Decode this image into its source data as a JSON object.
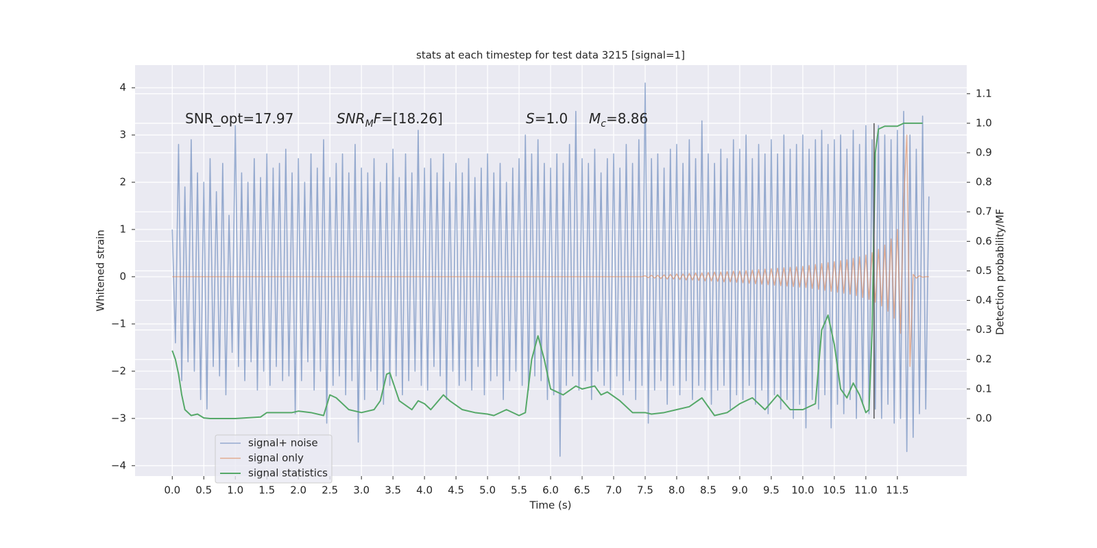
{
  "chart_data": {
    "type": "line",
    "title": "stats at each timestep for test data 3215 [signal=1]",
    "xlabel": "Time (s)",
    "ylabel": "Whitened strain",
    "y2label": "Detection probability/MF",
    "xlim": [
      -0.59,
      12.6
    ],
    "ylim": [
      -4.22,
      4.48
    ],
    "y2lim": [
      -0.195,
      1.197
    ],
    "xticks": [
      {
        "value": 0,
        "label": "0.0"
      },
      0.5,
      {
        "value": 1,
        "label": "1.0"
      },
      1.5,
      {
        "value": 2,
        "label": "2.0"
      },
      2.5,
      {
        "value": 3,
        "label": "3.0"
      },
      3.5,
      {
        "value": 4,
        "label": "4.0"
      },
      4.5,
      {
        "value": 5,
        "label": "5.0"
      },
      5.5,
      {
        "value": 6,
        "label": "6.0"
      },
      6.5,
      {
        "value": 7,
        "label": "7.0"
      },
      7.5,
      {
        "value": 8,
        "label": "8.0"
      },
      8.5,
      {
        "value": 9,
        "label": "9.0"
      },
      9.5,
      {
        "value": 10,
        "label": "10.0"
      },
      10.5,
      {
        "value": 11,
        "label": "11.0"
      },
      11.5
    ],
    "yticks": [
      {
        "value": -4,
        "label": "−4"
      },
      {
        "value": -3,
        "label": "−3"
      },
      {
        "value": -2,
        "label": "−2"
      },
      {
        "value": -1,
        "label": "−1"
      },
      0,
      1,
      2,
      3,
      4
    ],
    "y2ticks": [
      {
        "value": 0,
        "label": "0.0"
      },
      0.1,
      0.2,
      0.3,
      0.4,
      0.5,
      0.6,
      0.7,
      0.8,
      0.9,
      {
        "value": 1,
        "label": "1.0"
      },
      1.1
    ],
    "grid": true,
    "legend": "lower left",
    "annotations": [
      [
        {
          "text": "SNR_opt=17.97",
          "style": "normal"
        }
      ],
      [
        {
          "text": "SNR",
          "style": "italic"
        },
        {
          "text": "M",
          "style": "italic-sub"
        },
        {
          "text": "F",
          "style": "italic"
        },
        {
          "text": "=[18.26]",
          "style": "normal"
        }
      ],
      [
        {
          "text": "S",
          "style": "italic"
        },
        {
          "text": "=1.0",
          "style": "normal"
        }
      ],
      [
        {
          "text": "M",
          "style": "italic"
        },
        {
          "text": "c",
          "style": "italic-sub"
        },
        {
          "text": "=8.86",
          "style": "normal"
        }
      ]
    ],
    "vline": {
      "x": 11.13,
      "ymin": 0,
      "ymax": 1.0,
      "color": "#555555"
    },
    "x": [
      0,
      0.05,
      0.1,
      0.15,
      0.2,
      0.25,
      0.3,
      0.35,
      0.4,
      0.45,
      0.5,
      0.55,
      0.6,
      0.65,
      0.7,
      0.75,
      0.8,
      0.85,
      0.9,
      0.95,
      1.0,
      1.05,
      1.1,
      1.15,
      1.2,
      1.25,
      1.3,
      1.35,
      1.4,
      1.45,
      1.5,
      1.55,
      1.6,
      1.65,
      1.7,
      1.75,
      1.8,
      1.85,
      1.9,
      1.95,
      2.0,
      2.05,
      2.1,
      2.15,
      2.2,
      2.25,
      2.3,
      2.35,
      2.4,
      2.45,
      2.5,
      2.55,
      2.6,
      2.65,
      2.7,
      2.75,
      2.8,
      2.85,
      2.9,
      2.95,
      3.0,
      3.05,
      3.1,
      3.15,
      3.2,
      3.25,
      3.3,
      3.35,
      3.4,
      3.45,
      3.5,
      3.55,
      3.6,
      3.65,
      3.7,
      3.75,
      3.8,
      3.85,
      3.9,
      3.95,
      4.0,
      4.05,
      4.1,
      4.15,
      4.2,
      4.25,
      4.3,
      4.35,
      4.4,
      4.45,
      4.5,
      4.55,
      4.6,
      4.65,
      4.7,
      4.75,
      4.8,
      4.85,
      4.9,
      4.95,
      5.0,
      5.05,
      5.1,
      5.15,
      5.2,
      5.25,
      5.3,
      5.35,
      5.4,
      5.45,
      5.5,
      5.55,
      5.6,
      5.65,
      5.7,
      5.75,
      5.8,
      5.85,
      5.9,
      5.95,
      6.0,
      6.05,
      6.1,
      6.15,
      6.2,
      6.25,
      6.3,
      6.35,
      6.4,
      6.45,
      6.5,
      6.55,
      6.6,
      6.65,
      6.7,
      6.75,
      6.8,
      6.85,
      6.9,
      6.95,
      7.0,
      7.05,
      7.1,
      7.15,
      7.2,
      7.25,
      7.3,
      7.35,
      7.4,
      7.45,
      7.5,
      7.55,
      7.6,
      7.65,
      7.7,
      7.75,
      7.8,
      7.85,
      7.9,
      7.95,
      8.0,
      8.05,
      8.1,
      8.15,
      8.2,
      8.25,
      8.3,
      8.35,
      8.4,
      8.45,
      8.5,
      8.55,
      8.6,
      8.65,
      8.7,
      8.75,
      8.8,
      8.85,
      8.9,
      8.95,
      9.0,
      9.05,
      9.1,
      9.15,
      9.2,
      9.25,
      9.3,
      9.35,
      9.4,
      9.45,
      9.5,
      9.55,
      9.6,
      9.65,
      9.7,
      9.75,
      9.8,
      9.85,
      9.9,
      9.95,
      10.0,
      10.05,
      10.1,
      10.15,
      10.2,
      10.25,
      10.3,
      10.35,
      10.4,
      10.45,
      10.5,
      10.55,
      10.6,
      10.65,
      10.7,
      10.75,
      10.8,
      10.85,
      10.9,
      10.95,
      11.0,
      11.05,
      11.1,
      11.15,
      11.2,
      11.25,
      11.3,
      11.35,
      11.4,
      11.45,
      11.5,
      11.55,
      11.6,
      11.65,
      11.7,
      11.75,
      11.8,
      11.85,
      11.9,
      11.95,
      12.0
    ],
    "series": [
      {
        "name": "signal+ noise",
        "color": "#4c72b0",
        "values": [
          1.0,
          -1.4,
          2.8,
          -2.2,
          1.9,
          -1.8,
          2.9,
          -2.0,
          2.2,
          -2.6,
          2.0,
          -2.8,
          2.5,
          -1.9,
          1.8,
          -2.1,
          2.4,
          -2.5,
          1.3,
          -1.6,
          3.2,
          -1.9,
          2.2,
          -2.2,
          2.0,
          -1.8,
          2.5,
          -2.4,
          2.1,
          -2.0,
          2.6,
          -2.3,
          2.3,
          -1.9,
          2.4,
          -2.2,
          2.7,
          -2.1,
          2.2,
          -2.9,
          2.5,
          -2.2,
          2.0,
          -1.8,
          2.6,
          -2.4,
          2.3,
          -2.0,
          2.9,
          -3.1,
          2.1,
          -2.3,
          2.4,
          -2.1,
          2.6,
          -2.5,
          2.2,
          -2.2,
          2.8,
          -3.5,
          2.3,
          -2.6,
          2.2,
          -2.0,
          2.5,
          -2.4,
          2.0,
          -2.7,
          2.4,
          -2.3,
          2.7,
          -2.1,
          2.1,
          -2.5,
          2.6,
          -2.2,
          2.2,
          -2.0,
          3.1,
          -2.3,
          2.3,
          -2.4,
          2.5,
          -1.9,
          2.2,
          -2.1,
          2.6,
          -2.6,
          2.0,
          -2.0,
          2.4,
          -2.3,
          2.2,
          -2.2,
          2.5,
          -2.4,
          2.1,
          -1.9,
          2.3,
          -2.5,
          2.6,
          -2.2,
          2.2,
          -2.1,
          2.4,
          -2.6,
          2.0,
          -2.2,
          2.3,
          -2.0,
          2.5,
          -2.3,
          3.0,
          -2.4,
          2.6,
          -2.1,
          2.9,
          -2.2,
          2.4,
          -2.6,
          2.3,
          -2.5,
          2.6,
          -3.8,
          2.4,
          -2.3,
          2.8,
          -2.1,
          3.5,
          -2.4,
          2.5,
          -2.2,
          2.4,
          -2.6,
          2.7,
          -2.0,
          2.2,
          -2.3,
          2.5,
          -2.4,
          2.6,
          -2.1,
          2.3,
          -2.5,
          2.8,
          -2.2,
          2.4,
          -2.6,
          2.9,
          -2.3,
          4.1,
          -3.1,
          2.5,
          -2.4,
          2.6,
          -2.2,
          2.3,
          -2.7,
          2.7,
          -2.3,
          2.8,
          -2.5,
          2.4,
          -2.2,
          2.9,
          -2.6,
          2.5,
          -2.3,
          3.3,
          -2.4,
          2.6,
          -2.7,
          2.4,
          -2.4,
          2.7,
          -2.3,
          2.5,
          -2.8,
          2.9,
          -2.5,
          2.7,
          -2.6,
          3.0,
          -2.3,
          2.5,
          -2.7,
          2.8,
          -2.4,
          2.6,
          -2.9,
          2.9,
          -2.5,
          2.6,
          -2.8,
          3.0,
          -2.6,
          2.7,
          -3.0,
          2.8,
          -2.7,
          3.0,
          -3.2,
          2.7,
          -2.6,
          2.9,
          -2.8,
          3.1,
          -2.5,
          2.8,
          -3.2,
          2.9,
          -2.7,
          3.0,
          -2.9,
          2.7,
          -2.6,
          3.1,
          -3.0,
          2.8,
          -2.7,
          3.2,
          -2.9,
          2.9,
          -2.8,
          3.2,
          -3.0,
          3.0,
          -2.7,
          2.9,
          -3.1,
          3.1,
          -3.0,
          3.5,
          -3.7,
          3.0,
          -3.4,
          2.7,
          -2.9,
          3.4,
          -2.8,
          1.7
        ]
      },
      {
        "name": "signal only",
        "color": "#dd8452",
        "values": [
          0,
          0,
          0,
          0,
          0,
          0,
          0,
          0,
          0,
          0,
          0,
          0,
          0,
          0,
          0,
          0,
          0,
          0,
          0,
          0,
          0,
          0,
          0,
          0,
          0,
          0,
          0,
          0,
          0,
          0,
          0,
          0,
          0,
          0,
          0,
          0,
          0,
          0,
          0,
          0,
          0,
          0,
          0,
          0,
          0,
          0,
          0,
          0,
          0,
          0,
          0,
          0,
          0,
          0,
          0,
          0,
          0,
          0,
          0,
          0,
          0,
          0,
          0,
          0,
          0,
          0,
          0,
          0,
          0,
          0,
          0,
          0,
          0,
          0,
          0,
          0,
          0,
          0,
          0,
          0,
          0,
          0,
          0,
          0,
          0,
          0,
          0,
          0,
          0,
          0,
          0,
          0,
          0,
          0,
          0,
          0,
          0,
          0,
          0,
          0,
          0,
          0,
          0,
          0,
          0,
          0,
          0,
          0,
          0,
          0,
          0,
          0,
          0,
          0,
          0,
          0,
          0,
          0,
          0,
          0,
          0,
          0,
          0,
          0,
          0,
          0,
          0,
          0,
          0,
          0,
          0,
          0,
          0,
          0,
          0,
          0,
          0,
          0,
          0,
          0,
          0,
          0,
          0,
          0,
          0,
          0,
          0,
          0,
          0,
          0,
          0.02,
          -0.02,
          0.03,
          -0.03,
          0.03,
          -0.04,
          0.04,
          -0.05,
          0.05,
          -0.05,
          0.06,
          -0.06,
          0.06,
          -0.07,
          0.07,
          -0.07,
          0.08,
          -0.08,
          0.08,
          -0.09,
          0.09,
          -0.09,
          0.1,
          -0.1,
          0.1,
          -0.11,
          0.11,
          -0.11,
          0.12,
          -0.12,
          0.12,
          -0.13,
          0.13,
          -0.14,
          0.14,
          -0.15,
          0.15,
          -0.16,
          0.16,
          -0.17,
          0.17,
          -0.18,
          0.18,
          -0.19,
          0.19,
          -0.2,
          0.2,
          -0.21,
          0.21,
          -0.22,
          0.22,
          -0.23,
          0.24,
          -0.25,
          0.26,
          -0.27,
          0.28,
          -0.29,
          0.3,
          -0.31,
          0.32,
          -0.33,
          0.34,
          -0.35,
          0.36,
          -0.37,
          0.39,
          -0.4,
          0.42,
          -0.44,
          0.46,
          -0.48,
          0.51,
          -0.54,
          0.58,
          -0.62,
          0.67,
          -0.73,
          0.8,
          -0.88,
          1.0,
          -1.2,
          1.6,
          3.0,
          -1.9,
          0.05,
          -0.03,
          0.02,
          -0.01,
          0,
          0
        ]
      },
      {
        "name": "signal statistics",
        "color": "#55a868",
        "axis": "y2",
        "x": [
          0,
          0.05,
          0.1,
          0.15,
          0.2,
          0.3,
          0.4,
          0.5,
          0.6,
          1.0,
          1.4,
          1.5,
          1.7,
          1.9,
          2.0,
          2.2,
          2.4,
          2.5,
          2.6,
          2.8,
          3.0,
          3.2,
          3.3,
          3.4,
          3.45,
          3.6,
          3.8,
          3.9,
          4.0,
          4.1,
          4.3,
          4.4,
          4.6,
          4.8,
          5.0,
          5.1,
          5.3,
          5.5,
          5.6,
          5.7,
          5.8,
          5.9,
          6.0,
          6.2,
          6.4,
          6.5,
          6.7,
          6.8,
          6.9,
          7.1,
          7.3,
          7.5,
          7.6,
          7.8,
          8.0,
          8.2,
          8.4,
          8.6,
          8.8,
          9.0,
          9.2,
          9.4,
          9.6,
          9.8,
          10.0,
          10.2,
          10.3,
          10.4,
          10.5,
          10.6,
          10.7,
          10.8,
          10.9,
          11.0,
          11.05,
          11.1,
          11.15,
          11.2,
          11.3,
          11.5,
          11.6,
          11.9
        ],
        "values": [
          0.23,
          0.2,
          0.15,
          0.08,
          0.03,
          0.01,
          0.015,
          0.002,
          0,
          0,
          0.005,
          0.02,
          0.02,
          0.02,
          0.025,
          0.02,
          0.01,
          0.08,
          0.07,
          0.03,
          0.02,
          0.03,
          0.06,
          0.15,
          0.155,
          0.06,
          0.03,
          0.06,
          0.05,
          0.03,
          0.08,
          0.06,
          0.03,
          0.02,
          0.015,
          0.01,
          0.03,
          0.01,
          0.02,
          0.2,
          0.28,
          0.2,
          0.1,
          0.08,
          0.11,
          0.1,
          0.11,
          0.08,
          0.09,
          0.06,
          0.02,
          0.02,
          0.015,
          0.02,
          0.03,
          0.04,
          0.07,
          0.01,
          0.02,
          0.05,
          0.07,
          0.03,
          0.08,
          0.03,
          0.03,
          0.05,
          0.3,
          0.35,
          0.25,
          0.1,
          0.07,
          0.12,
          0.08,
          0.02,
          0.03,
          0.3,
          0.9,
          0.98,
          0.99,
          0.99,
          1.0,
          1.0
        ]
      }
    ]
  }
}
